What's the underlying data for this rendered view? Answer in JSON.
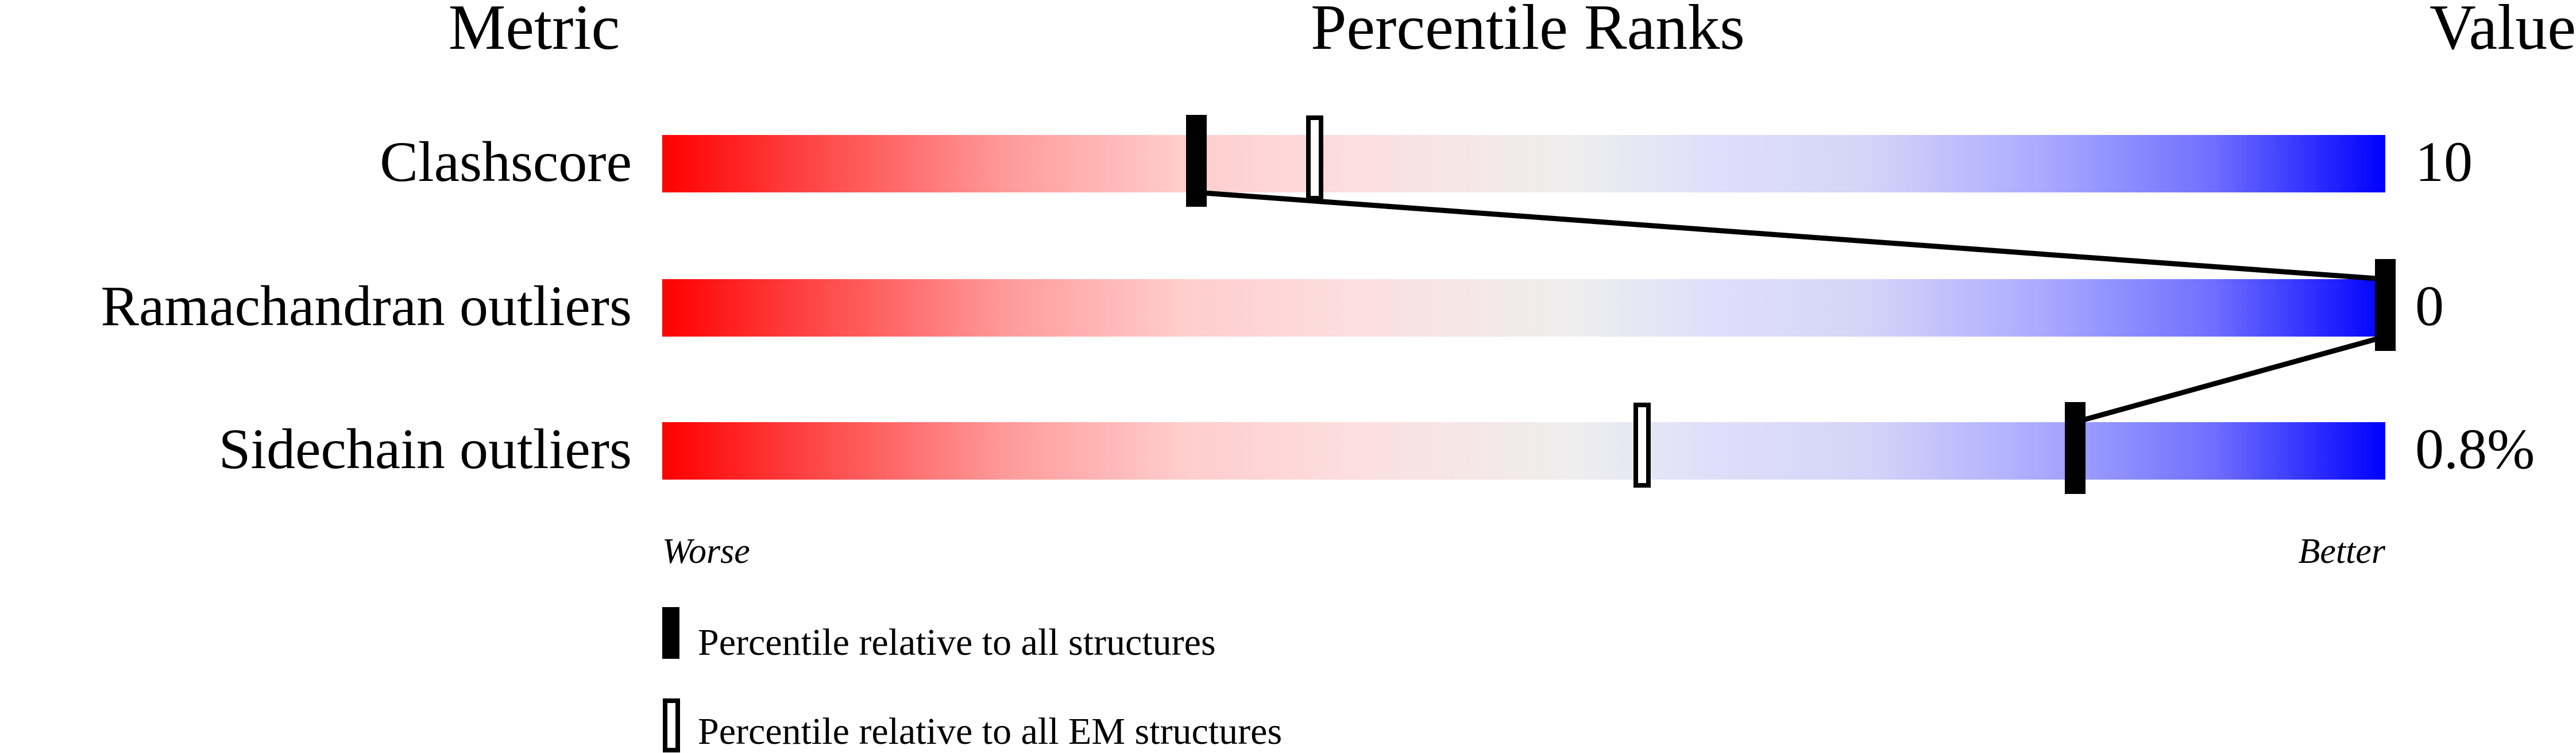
{
  "chart_data": {
    "type": "percentile-slider",
    "headers": {
      "metric": "Metric",
      "ranks": "Percentile Ranks",
      "value": "Value"
    },
    "metrics": [
      {
        "name": "Clashscore",
        "value": "10",
        "percentile_all": 31,
        "percentile_em": 38
      },
      {
        "name": "Ramachandran outliers",
        "value": "0",
        "percentile_all": 100,
        "percentile_em": null
      },
      {
        "name": "Sidechain outliers",
        "value": "0.8%",
        "percentile_all": 82,
        "percentile_em": 57
      }
    ],
    "axis": {
      "left": "Worse",
      "right": "Better"
    },
    "xlim": [
      0,
      100
    ],
    "legend": {
      "all": "Percentile relative to all structures",
      "em": "Percentile relative to all EM structures"
    },
    "colors": {
      "worse": "#ff0000",
      "middle": "#eeeeee",
      "better": "#0000ff",
      "marker": "#000000"
    }
  }
}
